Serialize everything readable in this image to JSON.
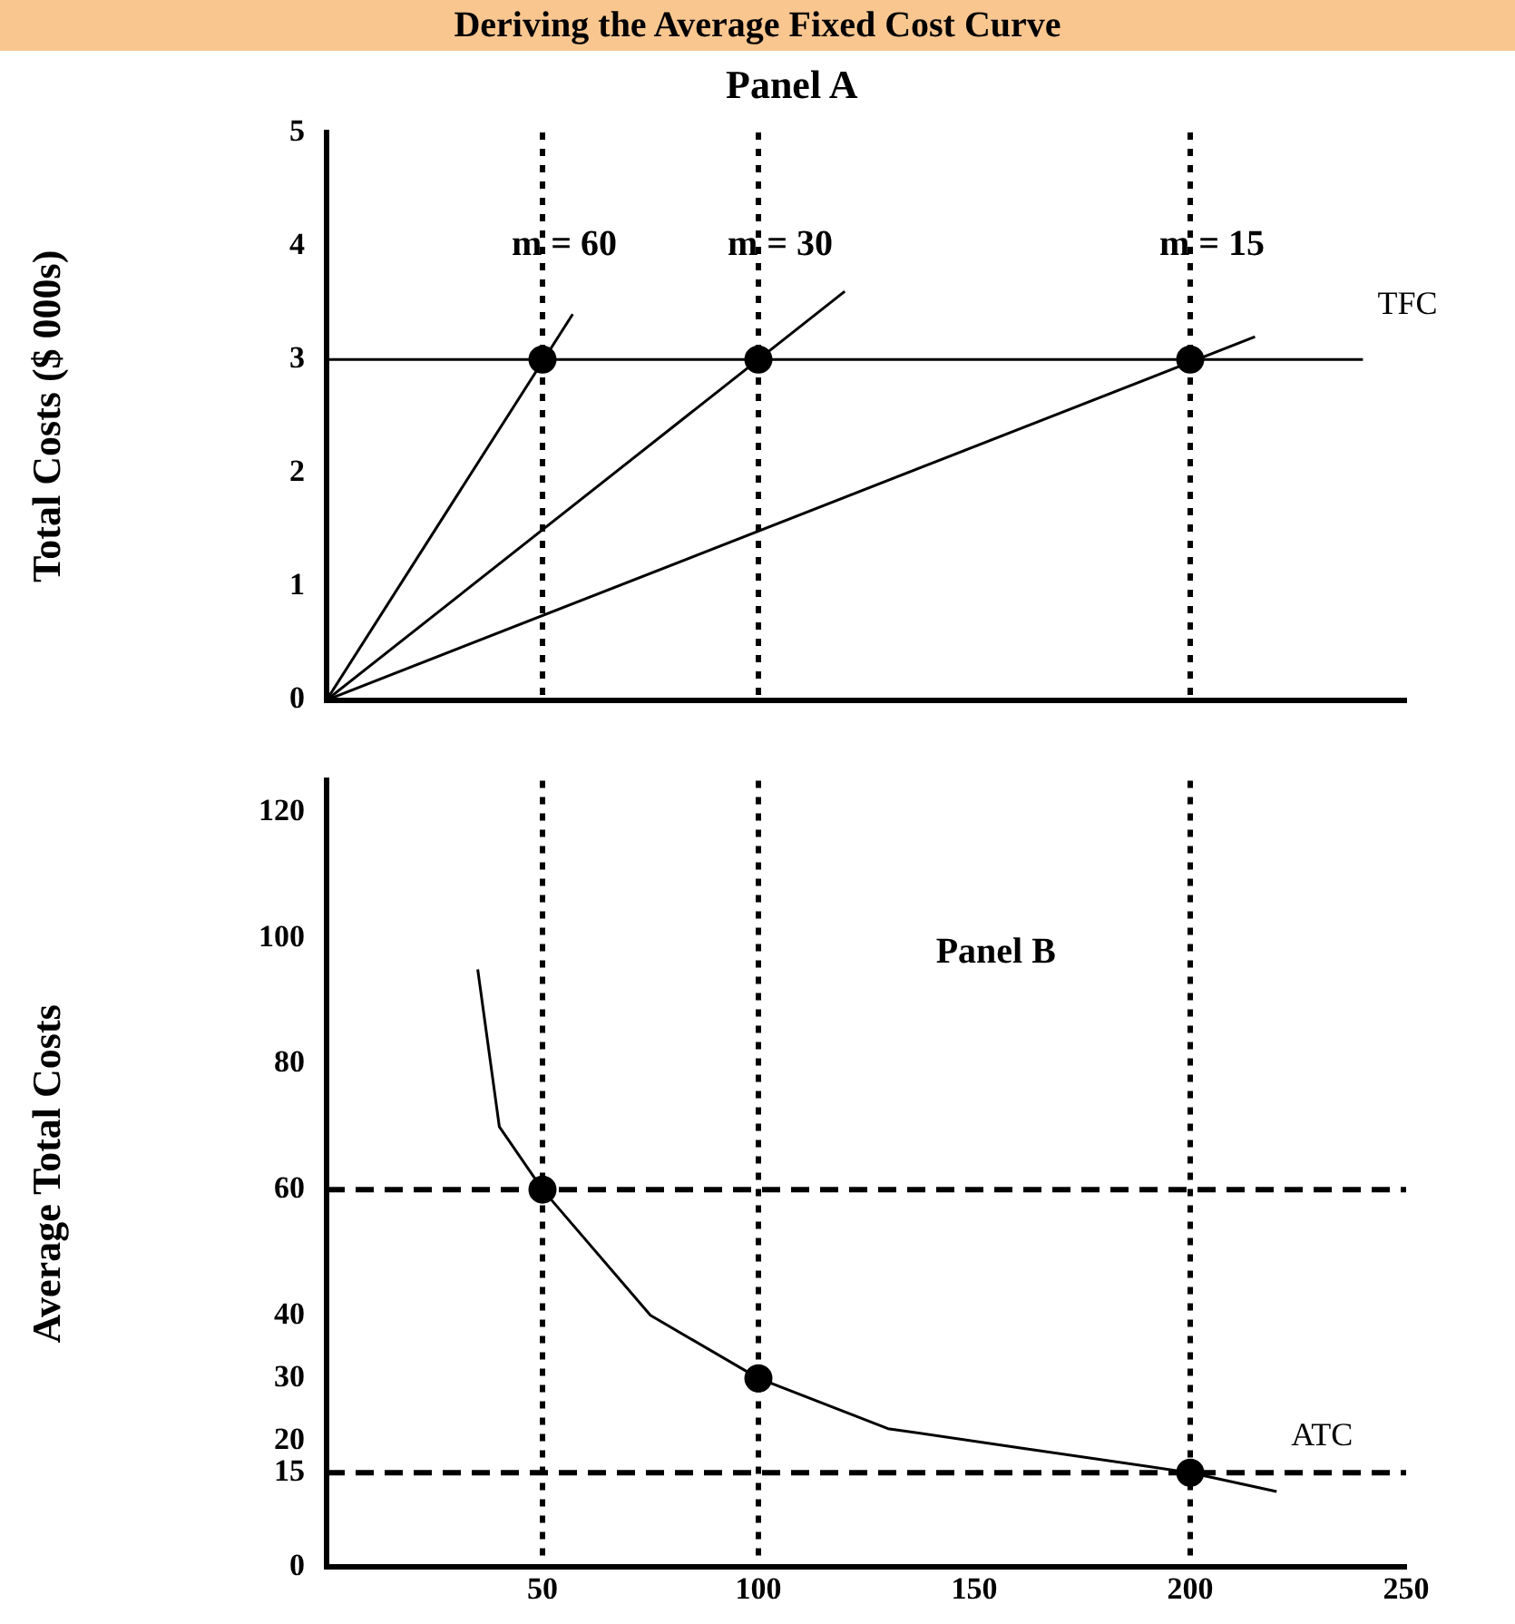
{
  "chart_data": [
    {
      "type": "line",
      "title": "Deriving the Average Fixed Cost Curve",
      "subtitle": "Panel A",
      "ylabel": "Total Costs ($ 000s)",
      "xlim": [
        0,
        250
      ],
      "ylim": [
        0,
        5
      ],
      "yticks": [
        0,
        1,
        2,
        3,
        4,
        5
      ],
      "tick_labels": "y",
      "grid": false,
      "legend": false,
      "series": [
        {
          "name": "TFC",
          "color": "#000000",
          "marker": "none",
          "x": [
            0,
            240
          ],
          "values": [
            3,
            3
          ]
        },
        {
          "color": "#000000",
          "marker": "none",
          "x": [
            0,
            57
          ],
          "values": [
            0,
            3.4
          ]
        },
        {
          "color": "#000000",
          "marker": "none",
          "x": [
            0,
            120
          ],
          "values": [
            0,
            3.6
          ]
        },
        {
          "color": "#000000",
          "marker": "none",
          "x": [
            0,
            215
          ],
          "values": [
            0,
            3.2
          ]
        },
        {
          "type": "scatter",
          "color": "#000000",
          "marker": "circle",
          "x": [
            50,
            100,
            200
          ],
          "values": [
            3,
            3,
            3
          ]
        }
      ],
      "ref_lines": [
        {
          "axis": "x",
          "value": 50,
          "color": "#000000",
          "line_style": "dotted"
        },
        {
          "axis": "x",
          "value": 100,
          "color": "#000000",
          "line_style": "dotted"
        },
        {
          "axis": "x",
          "value": 200,
          "color": "#000000",
          "line_style": "dotted"
        }
      ],
      "annotations": [
        {
          "text": "m = 60",
          "x": 50,
          "y": 4
        },
        {
          "text": "m = 30",
          "x": 100,
          "y": 4
        },
        {
          "text": "m = 15",
          "x": 200,
          "y": 4
        }
      ]
    },
    {
      "type": "line",
      "ylabel": "Average Total Costs",
      "xlim": [
        0,
        250
      ],
      "xticks": [
        50,
        100,
        150,
        200,
        250
      ],
      "ylim": [
        0,
        125
      ],
      "yticks": [
        0,
        15,
        20,
        30,
        40,
        60,
        80,
        100,
        120
      ],
      "grid": false,
      "legend": false,
      "series": [
        {
          "name": "ATC",
          "color": "#000000",
          "marker": "none",
          "x": [
            35,
            40,
            50,
            75,
            100,
            130,
            160,
            200,
            220
          ],
          "values": [
            95,
            70,
            60,
            40,
            30,
            22,
            19,
            15,
            12
          ]
        },
        {
          "type": "scatter",
          "color": "#000000",
          "marker": "circle",
          "x": [
            50,
            100,
            200
          ],
          "values": [
            60,
            30,
            15
          ]
        }
      ],
      "ref_lines": [
        {
          "axis": "x",
          "value": 50,
          "color": "#000000",
          "line_style": "dotted"
        },
        {
          "axis": "x",
          "value": 100,
          "color": "#000000",
          "line_style": "dotted"
        },
        {
          "axis": "x",
          "value": 200,
          "color": "#000000",
          "line_style": "dotted"
        },
        {
          "axis": "y",
          "value": 60,
          "color": "#000000",
          "line_style": "dashed"
        },
        {
          "axis": "y",
          "value": 15,
          "color": "#000000",
          "line_style": "dashed"
        }
      ],
      "annotations": [
        "Panel B"
      ]
    }
  ]
}
